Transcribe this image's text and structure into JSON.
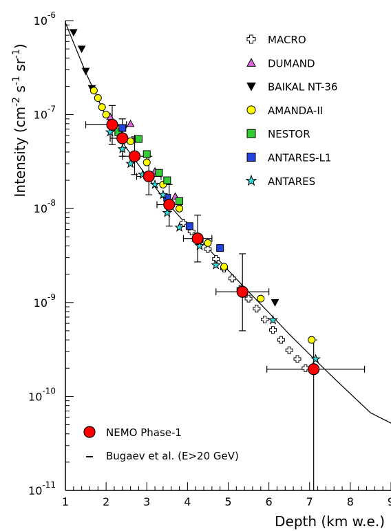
{
  "chart_data": {
    "type": "scatter",
    "xlabel": "Depth (km w.e.)",
    "ylabel": "Intensity (cm",
    "ylabel_parts": [
      "Intensity (cm",
      "-2",
      " s",
      "-1",
      " sr",
      "-1",
      ")"
    ],
    "xlim": [
      1,
      9
    ],
    "ylim": [
      1e-11,
      1e-06
    ],
    "yscale": "log",
    "x_ticks": [
      "1",
      "2",
      "3",
      "4",
      "5",
      "6",
      "7",
      "8",
      "9"
    ],
    "y_ticks": [
      {
        "base": "10",
        "exp": "-6",
        "value": 1e-06
      },
      {
        "base": "10",
        "exp": "-7",
        "value": 1e-07
      },
      {
        "base": "10",
        "exp": "-8",
        "value": 1e-08
      },
      {
        "base": "10",
        "exp": "-9",
        "value": 1e-09
      },
      {
        "base": "10",
        "exp": "-10",
        "value": 1e-10
      },
      {
        "base": "10",
        "exp": "-11",
        "value": 1e-11
      }
    ],
    "legend_position": "top-right",
    "legend_bottom_position": "bottom-left",
    "curve": {
      "name": "Bugaev et al. (E>20 GeV)",
      "points": [
        [
          1.0,
          9.5e-07
        ],
        [
          1.5,
          2.8e-07
        ],
        [
          2.0,
          9.5e-08
        ],
        [
          2.5,
          4.4e-08
        ],
        [
          3.0,
          2.2e-08
        ],
        [
          3.5,
          1.15e-08
        ],
        [
          4.0,
          6.6e-09
        ],
        [
          4.5,
          3.8e-09
        ],
        [
          5.0,
          2.2e-09
        ],
        [
          5.5,
          1.3e-09
        ],
        [
          6.0,
          7.8e-10
        ],
        [
          6.5,
          4.6e-10
        ],
        [
          7.0,
          2.8e-10
        ],
        [
          7.5,
          1.72e-10
        ],
        [
          8.0,
          1.07e-10
        ],
        [
          8.5,
          6.7e-11
        ],
        [
          9.0,
          5.2e-11
        ]
      ]
    },
    "series": [
      {
        "name": "MACRO",
        "marker": "cross",
        "color": "#ffffff",
        "points": [
          [
            3.9,
            7e-09
          ],
          [
            4.1,
            5.7e-09
          ],
          [
            4.3,
            4.6e-09
          ],
          [
            4.5,
            3.7e-09
          ],
          [
            4.7,
            2.9e-09
          ],
          [
            4.9,
            2.3e-09
          ],
          [
            5.1,
            1.8e-09
          ],
          [
            5.3,
            1.4e-09
          ],
          [
            5.5,
            1.1e-09
          ],
          [
            5.7,
            8.6e-10
          ],
          [
            5.9,
            6.6e-10
          ],
          [
            6.1,
            5.1e-10
          ],
          [
            6.3,
            4e-10
          ],
          [
            6.5,
            3.1e-10
          ],
          [
            6.7,
            2.5e-10
          ],
          [
            6.9,
            2e-10
          ]
        ]
      },
      {
        "name": "DUMAND",
        "marker": "triangle-up",
        "color": "#e066e0",
        "points": [
          [
            2.1,
            9.5e-08
          ],
          [
            2.6,
            8e-08
          ],
          [
            3.2,
            2.5e-08
          ],
          [
            3.7,
            1.35e-08
          ],
          [
            4.2,
            4.8e-09
          ]
        ]
      },
      {
        "name": "BAIKAL NT-36",
        "marker": "triangle-down",
        "color": "#000000",
        "points": [
          [
            1.2,
            7.5e-07
          ],
          [
            1.4,
            5e-07
          ],
          [
            1.5,
            2.9e-07
          ],
          [
            1.65,
            1.9e-07
          ],
          [
            6.15,
            1e-09
          ]
        ]
      },
      {
        "name": "AMANDA-II",
        "marker": "circle",
        "color": "#ffff00",
        "points": [
          [
            1.7,
            1.8e-07
          ],
          [
            1.8,
            1.5e-07
          ],
          [
            1.9,
            1.2e-07
          ],
          [
            2.0,
            1e-07
          ],
          [
            2.3,
            7e-08
          ],
          [
            2.6,
            5.2e-08
          ],
          [
            3.0,
            3.1e-08
          ],
          [
            3.4,
            1.8e-08
          ],
          [
            3.8,
            1e-08
          ],
          [
            4.5,
            4.3e-09
          ],
          [
            4.9,
            2.4e-09
          ],
          [
            5.8,
            1.1e-09
          ],
          [
            7.05,
            4e-10
          ]
        ]
      },
      {
        "name": "NESTOR",
        "marker": "square",
        "color": "#33cc33",
        "points": [
          [
            2.3,
            6.5e-08
          ],
          [
            2.8,
            5.5e-08
          ],
          [
            3.0,
            3.8e-08
          ],
          [
            3.3,
            2.4e-08
          ],
          [
            3.5,
            2e-08
          ],
          [
            3.8,
            1.2e-08
          ]
        ]
      },
      {
        "name": "ANTARES-L1",
        "marker": "square",
        "color": "#2244dd",
        "points": [
          [
            2.4,
            7.2e-08
          ],
          [
            3.5,
            1.3e-08
          ],
          [
            4.05,
            6.5e-09
          ],
          [
            4.8,
            3.8e-09
          ]
        ]
      },
      {
        "name": "ANTARES",
        "marker": "star",
        "color": "#33dddd",
        "points": [
          [
            2.1,
            6.5e-08
          ],
          [
            2.4,
            4.3e-08
          ],
          [
            2.6,
            3e-08
          ],
          [
            2.9,
            2.3e-08
          ],
          [
            3.2,
            1.8e-08
          ],
          [
            3.4,
            1.4e-08
          ],
          [
            3.5,
            9e-09
          ],
          [
            3.8,
            6.3e-09
          ],
          [
            4.3,
            4e-09
          ],
          [
            4.7,
            2.5e-09
          ],
          [
            6.1,
            6.5e-10
          ],
          [
            7.15,
            2.5e-10
          ]
        ]
      }
    ],
    "nemo": {
      "name": "NEMO Phase-1",
      "color": "#ff0000",
      "points": [
        [
          2.15,
          7.8e-08
        ],
        [
          2.4,
          5.6e-08
        ],
        [
          2.7,
          3.6e-08
        ],
        [
          3.05,
          2.2e-08
        ],
        [
          3.55,
          1.1e-08
        ],
        [
          4.25,
          4.8e-09
        ],
        [
          5.35,
          1.3e-09
        ],
        [
          7.1,
          1.95e-10
        ]
      ],
      "x_err": [
        [
          1.5,
          2.5
        ],
        [
          2.1,
          2.7
        ],
        [
          2.4,
          3.0
        ],
        [
          2.75,
          3.35
        ],
        [
          3.25,
          3.85
        ],
        [
          3.9,
          4.6
        ],
        [
          4.7,
          6.0
        ],
        [
          5.95,
          8.35
        ]
      ],
      "y_err": [
        [
          4.8e-08,
          1.25e-07
        ],
        [
          3.6e-08,
          9e-08
        ],
        [
          2.3e-08,
          5.8e-08
        ],
        [
          1.4e-08,
          3.6e-08
        ],
        [
          6.5e-09,
          1.8e-08
        ],
        [
          2.7e-09,
          8.5e-09
        ],
        [
          5e-10,
          3.3e-09
        ],
        [
          1e-11,
          4e-10
        ]
      ]
    }
  }
}
